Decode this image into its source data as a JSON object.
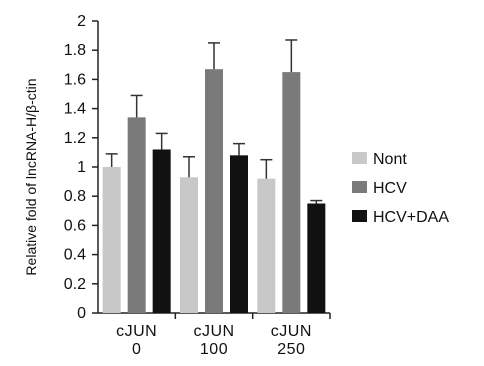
{
  "chart_data": {
    "type": "bar",
    "title": "",
    "xlabel": "",
    "ylabel": "Relative fold of lncRNA-H/β-ctin",
    "ylim": [
      0,
      2
    ],
    "yticks": [
      "0",
      "0.2",
      "0.4",
      "0.6",
      "0.8",
      "1",
      "1.2",
      "1.4",
      "1.6",
      "1.8",
      "2"
    ],
    "categories": [
      {
        "line1": "cJUN",
        "line2": "0"
      },
      {
        "line1": "cJUN",
        "line2": "100"
      },
      {
        "line1": "cJUN",
        "line2": "250"
      }
    ],
    "series": [
      {
        "name": "Nont",
        "color": "#c8c8c8",
        "values": [
          1.0,
          0.93,
          0.92
        ],
        "errors": [
          0.09,
          0.14,
          0.13
        ]
      },
      {
        "name": "HCV",
        "color": "#7a7a7a",
        "values": [
          1.34,
          1.67,
          1.65
        ],
        "errors": [
          0.15,
          0.18,
          0.22
        ]
      },
      {
        "name": "HCV+DAA",
        "color": "#111111",
        "values": [
          1.12,
          1.08,
          0.75
        ],
        "errors": [
          0.11,
          0.08,
          0.02
        ]
      }
    ],
    "legend": "right",
    "grid": false,
    "error_bars": true
  }
}
